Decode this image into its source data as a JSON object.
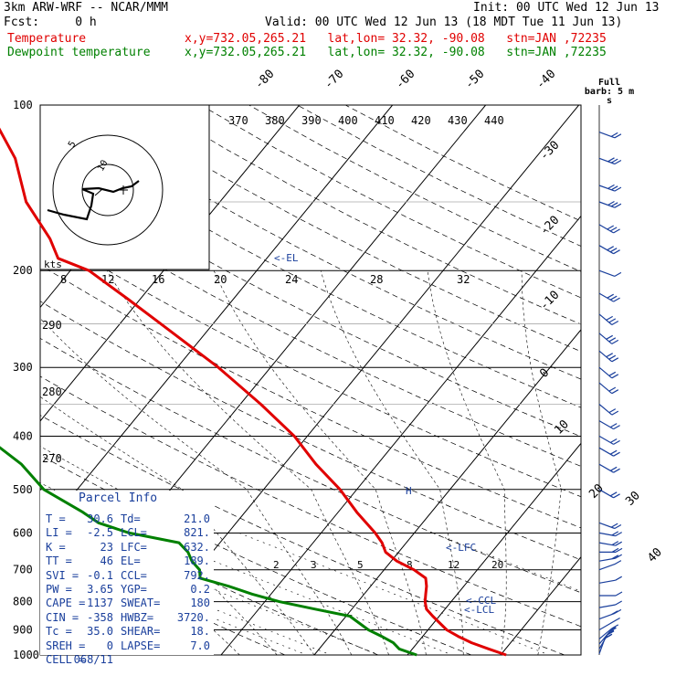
{
  "header": {
    "model": "3km ARW-WRF -- NCAR/MMM",
    "init": "Init: 00 UTC Wed 12 Jun 13",
    "fcst": "Fcst:     0 h",
    "valid": "Valid: 00 UTC Wed 12 Jun 13 (18 MDT Tue 11 Jun 13)",
    "temp_label": "Temperature",
    "temp_loc": "x,y=732.05,265.21   lat,lon= 32.32, -90.08   stn=JAN ,72235",
    "dew_label": "Dewpoint temperature",
    "dew_loc": "x,y=732.05,265.21   lat,lon= 32.32, -90.08   stn=JAN ,72235"
  },
  "wind_barb_title": "Full barb:\n5 m s",
  "parcel_info": {
    "title": "Parcel Info",
    "rows": [
      [
        "T",
        "30.6",
        "Td",
        "21.0"
      ],
      [
        "LI",
        "-2.5",
        "LCL",
        "821."
      ],
      [
        "K",
        "23",
        "LFC",
        "632."
      ],
      [
        "TT",
        "46",
        "EL",
        "189."
      ],
      [
        "SVI",
        "-0.1",
        "CCL",
        "792."
      ],
      [
        "PW",
        "3.65",
        "YGP",
        "0.2"
      ],
      [
        "CAPE",
        "1137",
        "SWEAT",
        "180"
      ],
      [
        "CIN",
        "-358",
        "HWBZ",
        "3720."
      ],
      [
        "Tc",
        "35.0",
        "SHEAR",
        "18."
      ],
      [
        "SREH",
        "0",
        "LAPSE",
        "7.0"
      ],
      [
        "CELL",
        "068/11",
        "",
        ""
      ]
    ]
  },
  "chart_data": {
    "type": "line",
    "title": "",
    "xlabel": "",
    "ylabel": "",
    "y_scale": "log",
    "ylim": [
      1000,
      100
    ],
    "pressure_ticks": [
      100,
      200,
      300,
      400,
      500,
      600,
      700,
      800,
      900,
      1000
    ],
    "isotherm_labels": [
      -80,
      -70,
      -60,
      -50,
      -40,
      -30,
      -20,
      -10,
      0,
      10,
      20,
      30,
      40
    ],
    "theta_labels": [
      370,
      380,
      390,
      400,
      410,
      420,
      430,
      440
    ],
    "dry_adiabat_labels": [
      290,
      280,
      270
    ],
    "mixing_ratio_labels": [
      2,
      3,
      5,
      8,
      12,
      20
    ],
    "lower_mixing_ratio_labels": [
      2,
      3,
      5,
      8,
      12,
      20
    ],
    "hodograph_speed_labels": [
      8,
      12,
      16,
      20,
      24,
      28,
      32
    ],
    "hodograph_unit": "kts",
    "hodograph_ring_labels": [
      "5",
      "10"
    ],
    "annotations": [
      {
        "text": "<-EL",
        "p": 189
      },
      {
        "text": "<-LFC",
        "p": 632
      },
      {
        "text": "<-CCL",
        "p": 792
      },
      {
        "text": "<-LCL",
        "p": 821
      },
      {
        "text": "H",
        "p": 490
      }
    ],
    "series": [
      {
        "name": "Temperature",
        "color": "#e00000",
        "points": [
          [
            1000,
            30.6
          ],
          [
            975,
            28.2
          ],
          [
            950,
            25.8
          ],
          [
            925,
            23.8
          ],
          [
            900,
            22.0
          ],
          [
            850,
            19.3
          ],
          [
            825,
            18.0
          ],
          [
            800,
            17.2
          ],
          [
            775,
            16.6
          ],
          [
            750,
            16.0
          ],
          [
            725,
            15.2
          ],
          [
            700,
            13.2
          ],
          [
            675,
            10.6
          ],
          [
            650,
            8.6
          ],
          [
            625,
            7.4
          ],
          [
            600,
            5.8
          ],
          [
            550,
            2.0
          ],
          [
            500,
            -1.8
          ],
          [
            450,
            -6.6
          ],
          [
            400,
            -11.4
          ],
          [
            350,
            -17.8
          ],
          [
            300,
            -25.6
          ],
          [
            250,
            -35.6
          ],
          [
            225,
            -41.4
          ],
          [
            200,
            -48.0
          ],
          [
            190,
            -52.4
          ],
          [
            175,
            -55.0
          ],
          [
            150,
            -60.8
          ],
          [
            125,
            -65.8
          ],
          [
            100,
            -73.6
          ]
        ]
      },
      {
        "name": "Dewpoint temperature",
        "color": "#008000",
        "points": [
          [
            1000,
            21.0
          ],
          [
            975,
            18.6
          ],
          [
            950,
            17.4
          ],
          [
            925,
            15.6
          ],
          [
            900,
            13.6
          ],
          [
            850,
            10.4
          ],
          [
            825,
            6.0
          ],
          [
            800,
            1.6
          ],
          [
            775,
            -2.0
          ],
          [
            750,
            -5.2
          ],
          [
            725,
            -9.0
          ],
          [
            700,
            -9.8
          ],
          [
            675,
            -11.4
          ],
          [
            650,
            -12.6
          ],
          [
            625,
            -14.4
          ],
          [
            600,
            -20.6
          ],
          [
            575,
            -24.8
          ],
          [
            550,
            -27.4
          ],
          [
            500,
            -33.6
          ],
          [
            450,
            -38.2
          ],
          [
            400,
            -44.6
          ],
          [
            375,
            -50.6
          ],
          [
            350,
            -55.0
          ],
          [
            330,
            -55.6
          ],
          [
            300,
            -52.6
          ],
          [
            280,
            -55.6
          ],
          [
            250,
            -61.6
          ],
          [
            220,
            -66.0
          ],
          [
            200,
            -70.8
          ],
          [
            175,
            -73.6
          ],
          [
            150,
            -74.4
          ],
          [
            125,
            -77.6
          ],
          [
            100,
            -85.4
          ]
        ]
      }
    ],
    "hodograph": [
      [
        0,
        0
      ],
      [
        3,
        1
      ],
      [
        5,
        1
      ],
      [
        7,
        0
      ],
      [
        8,
        2
      ],
      [
        6,
        4
      ],
      [
        4,
        6
      ],
      [
        5,
        8
      ],
      [
        7,
        9
      ],
      [
        9,
        8
      ],
      [
        11,
        11
      ],
      [
        13,
        13
      ],
      [
        15,
        16
      ],
      [
        18,
        20
      ],
      [
        20,
        23
      ]
    ],
    "wind_barbs": [
      {
        "p": 995,
        "spd": 5,
        "dir": 200
      },
      {
        "p": 975,
        "spd": 10,
        "dir": 210
      },
      {
        "p": 955,
        "spd": 10,
        "dir": 220
      },
      {
        "p": 935,
        "spd": 10,
        "dir": 230
      },
      {
        "p": 900,
        "spd": 10,
        "dir": 240
      },
      {
        "p": 860,
        "spd": 10,
        "dir": 250
      },
      {
        "p": 820,
        "spd": 5,
        "dir": 260
      },
      {
        "p": 780,
        "spd": 5,
        "dir": 270
      },
      {
        "p": 740,
        "spd": 5,
        "dir": 260
      },
      {
        "p": 700,
        "spd": 5,
        "dir": 250
      },
      {
        "p": 675,
        "spd": 10,
        "dir": 260
      },
      {
        "p": 650,
        "spd": 10,
        "dir": 270
      },
      {
        "p": 625,
        "spd": 10,
        "dir": 280
      },
      {
        "p": 600,
        "spd": 10,
        "dir": 280
      },
      {
        "p": 575,
        "spd": 10,
        "dir": 290
      },
      {
        "p": 500,
        "spd": 10,
        "dir": 300
      },
      {
        "p": 450,
        "spd": 10,
        "dir": 300
      },
      {
        "p": 420,
        "spd": 10,
        "dir": 300
      },
      {
        "p": 400,
        "spd": 10,
        "dir": 300
      },
      {
        "p": 375,
        "spd": 10,
        "dir": 300
      },
      {
        "p": 350,
        "spd": 10,
        "dir": 310
      },
      {
        "p": 320,
        "spd": 10,
        "dir": 310
      },
      {
        "p": 300,
        "spd": 10,
        "dir": 310
      },
      {
        "p": 280,
        "spd": 15,
        "dir": 310
      },
      {
        "p": 260,
        "spd": 15,
        "dir": 310
      },
      {
        "p": 240,
        "spd": 15,
        "dir": 310
      },
      {
        "p": 220,
        "spd": 15,
        "dir": 300
      },
      {
        "p": 200,
        "spd": 5,
        "dir": 290
      },
      {
        "p": 180,
        "spd": 15,
        "dir": 300
      },
      {
        "p": 165,
        "spd": 15,
        "dir": 300
      },
      {
        "p": 150,
        "spd": 15,
        "dir": 290
      },
      {
        "p": 140,
        "spd": 15,
        "dir": 290
      },
      {
        "p": 125,
        "spd": 15,
        "dir": 290
      },
      {
        "p": 112,
        "spd": 10,
        "dir": 290
      }
    ]
  }
}
